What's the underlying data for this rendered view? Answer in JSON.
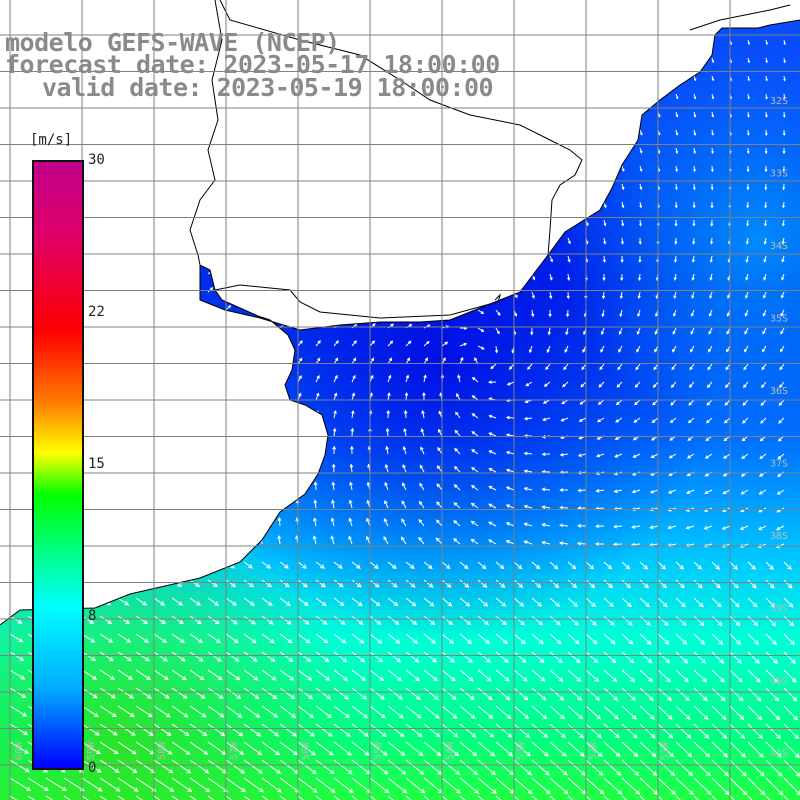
{
  "title": {
    "line1": "modelo GEFS-WAVE (NCEP)",
    "line2": "forecast date: 2023-05-17 18:00:00",
    "line3": "valid date: 2023-05-19 18:00:00"
  },
  "colorbar": {
    "unit": "[m/s]",
    "ticks": [
      "30",
      "22",
      "15",
      "8",
      "0"
    ],
    "colors": [
      "#0000ff",
      "#00aaff",
      "#00ffff",
      "#00ff00",
      "#ffff00",
      "#ff8000",
      "#ff0000",
      "#c0008a"
    ]
  },
  "lat_labels": [
    "32S",
    "33S",
    "34S",
    "35S",
    "36S",
    "37S",
    "38S",
    "39S",
    "40S",
    "41S"
  ],
  "lon_labels": [
    "60W",
    "59W",
    "58W",
    "57W",
    "56W",
    "55W",
    "54W",
    "53W",
    "52W",
    "51W"
  ],
  "colors": {
    "land": "#ffffff",
    "coast": "#000000",
    "grid": "#808080",
    "arrows": "#ffffff"
  }
}
